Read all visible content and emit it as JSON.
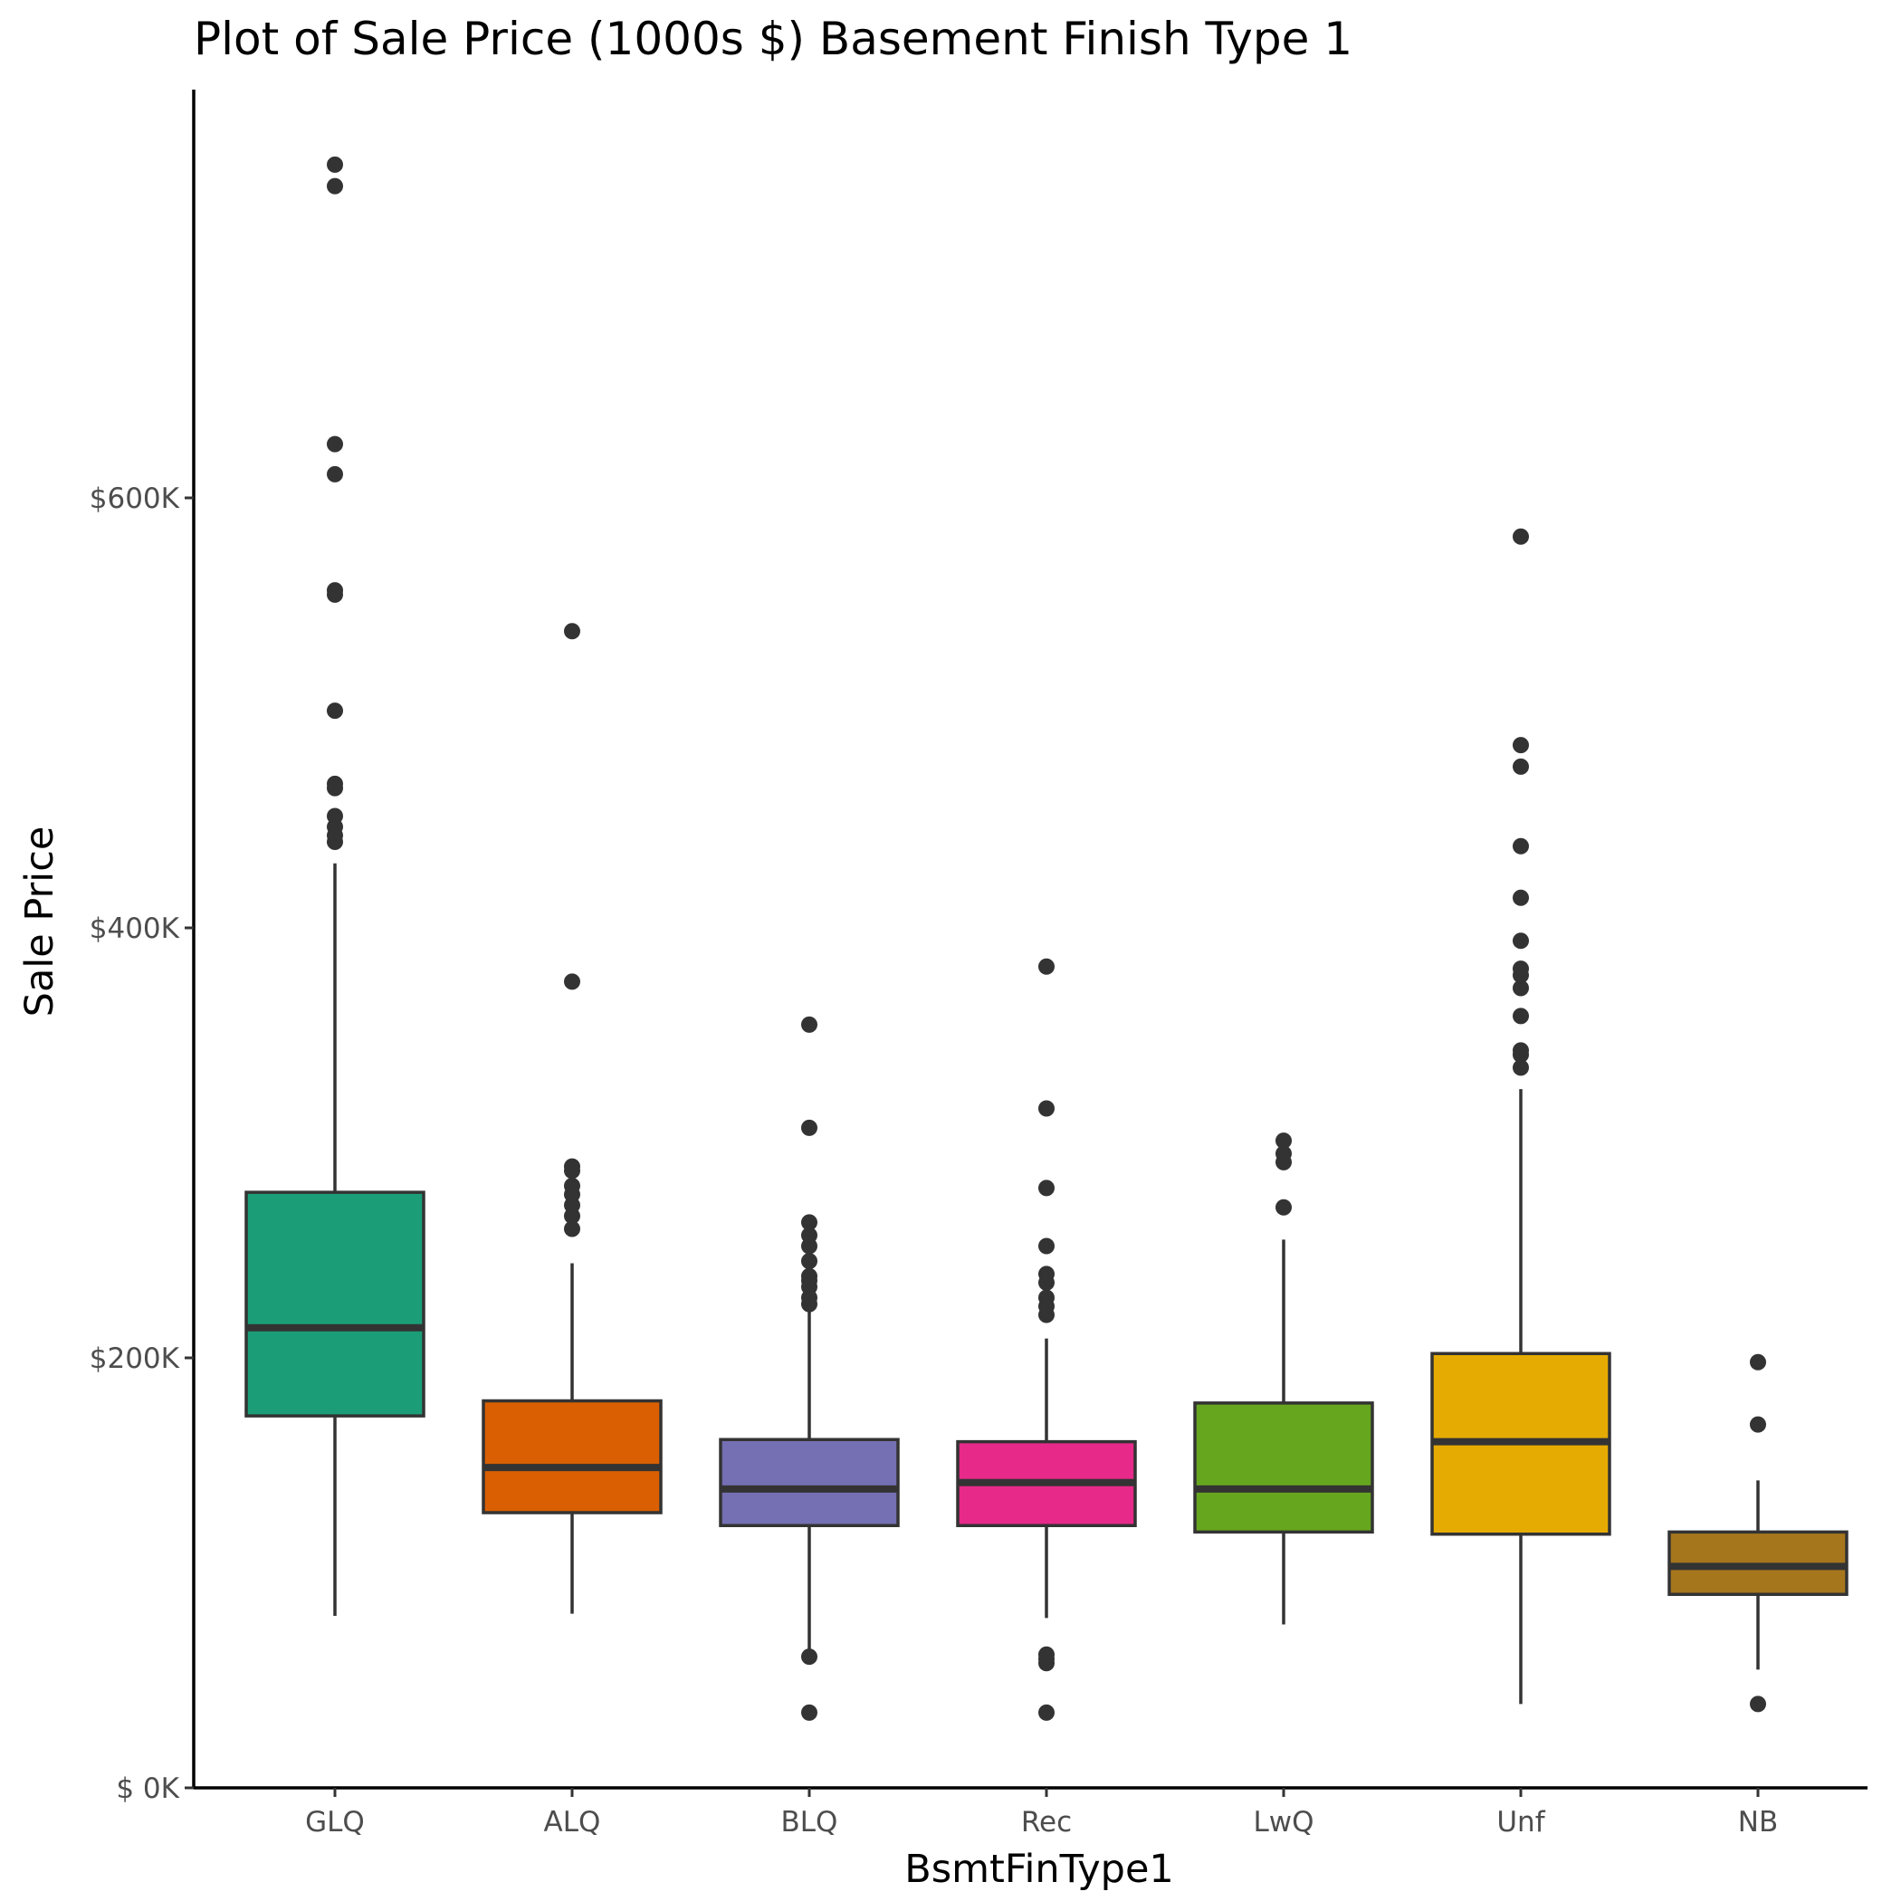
{
  "chart_data": {
    "type": "box",
    "title": "Plot of Sale Price (1000s $) Basement Finish Type 1",
    "xlabel": "BsmtFinType1",
    "ylabel": "Sale Price",
    "ylim": [
      0,
      755000
    ],
    "yticks": [
      0,
      200000,
      400000,
      600000
    ],
    "ytick_labels": [
      "$  0K",
      "$200K",
      "$400K",
      "$600K"
    ],
    "grid": false,
    "legend": "none",
    "categories": [
      "GLQ",
      "ALQ",
      "BLQ",
      "Rec",
      "LwQ",
      "Unf",
      "NB"
    ],
    "colors": [
      "#1b9e77",
      "#d95f02",
      "#7570b3",
      "#e7298a",
      "#66a61e",
      "#e6ab02",
      "#a6761d"
    ],
    "boxes": [
      {
        "category": "GLQ",
        "whisker_low": 80000,
        "q1": 173000,
        "median": 214000,
        "q3": 277000,
        "whisker_high": 430000,
        "outliers": [
          440000,
          443000,
          447000,
          452000,
          465000,
          467000,
          501000,
          555000,
          557000,
          611000,
          625000,
          745000,
          755000
        ]
      },
      {
        "category": "ALQ",
        "whisker_low": 81000,
        "q1": 128000,
        "median": 149000,
        "q3": 180000,
        "whisker_high": 244000,
        "outliers": [
          260000,
          266000,
          271000,
          276000,
          280000,
          287000,
          289000,
          375000,
          538000
        ]
      },
      {
        "category": "BLQ",
        "whisker_low": 64000,
        "q1": 122000,
        "median": 139000,
        "q3": 162000,
        "whisker_high": 224000,
        "outliers": [
          35000,
          61000,
          225000,
          228000,
          233000,
          236000,
          238000,
          245000,
          252000,
          257000,
          263000,
          307000,
          355000
        ]
      },
      {
        "category": "Rec",
        "whisker_low": 79000,
        "q1": 122000,
        "median": 142000,
        "q3": 161000,
        "whisker_high": 209000,
        "outliers": [
          35000,
          58000,
          60000,
          62000,
          220000,
          224000,
          228000,
          235000,
          239000,
          252000,
          279000,
          316000,
          382000
        ]
      },
      {
        "category": "LwQ",
        "whisker_low": 76000,
        "q1": 119000,
        "median": 139000,
        "q3": 179000,
        "whisker_high": 255000,
        "outliers": [
          270000,
          291000,
          295000,
          301000
        ]
      },
      {
        "category": "Unf",
        "whisker_low": 39000,
        "q1": 118000,
        "median": 161000,
        "q3": 202000,
        "whisker_high": 325000,
        "outliers": [
          335000,
          341000,
          343000,
          359000,
          372000,
          378000,
          381000,
          394000,
          414000,
          438000,
          475000,
          485000,
          582000
        ]
      },
      {
        "category": "NB",
        "whisker_low": 55000,
        "q1": 90000,
        "median": 103000,
        "q3": 119000,
        "whisker_high": 143000,
        "outliers": [
          39000,
          169000,
          198000
        ]
      }
    ]
  }
}
